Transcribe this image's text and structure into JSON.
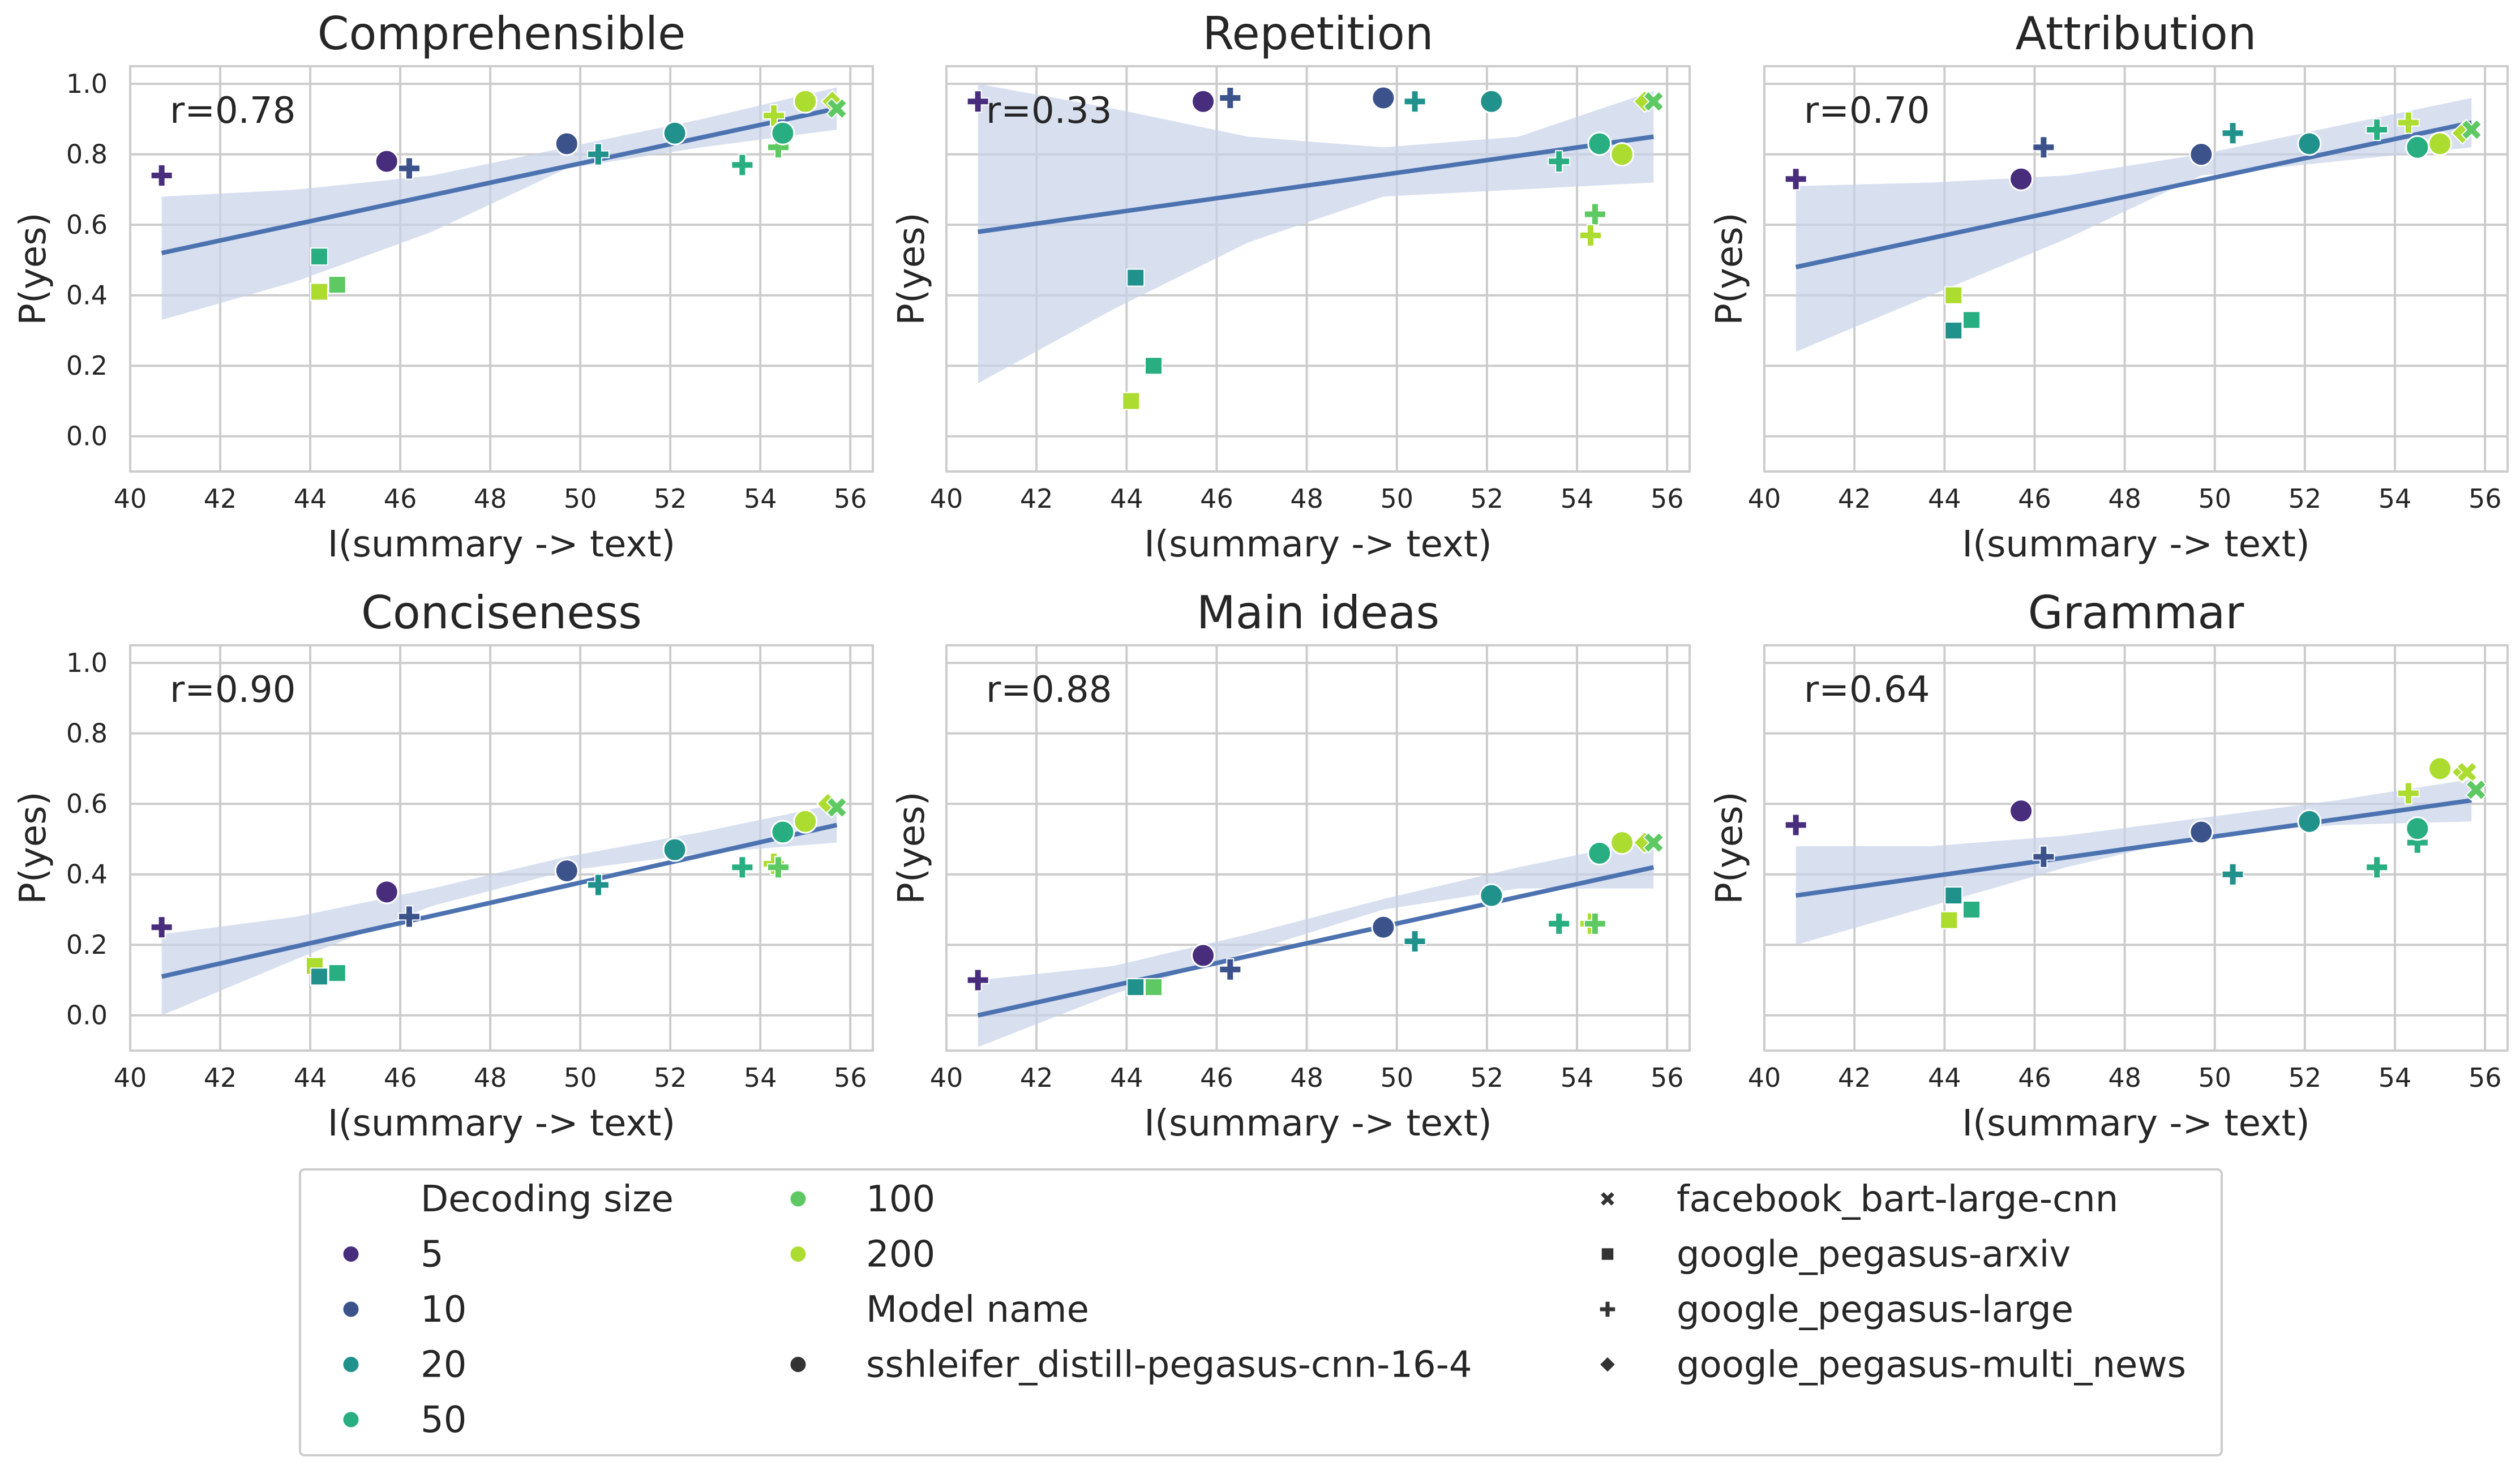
{
  "chart_data": {
    "type": "scatter",
    "xlabel": "I(summary -> text)",
    "ylabel": "P(yes)",
    "xlim": [
      40,
      56.5
    ],
    "ylim": [
      -0.1,
      1.05
    ],
    "xticks": [
      "40",
      "42",
      "44",
      "46",
      "48",
      "50",
      "52",
      "54",
      "56"
    ],
    "yticks": [
      "0.0",
      "0.2",
      "0.4",
      "0.6",
      "0.8",
      "1.0"
    ],
    "colors": {
      "5": "#472d7b",
      "10": "#3b528b",
      "20": "#21918c",
      "50": "#28ae80",
      "100": "#5ec962",
      "200": "#addc30",
      "regression": "#4c72b0",
      "ci_band": "#c8d3ea"
    },
    "models": [
      {
        "name": "sshleifer_distill-pegasus-cnn-16-4",
        "marker": "circle"
      },
      {
        "name": "facebook_bart-large-cnn",
        "marker": "x"
      },
      {
        "name": "google_pegasus-arxiv",
        "marker": "square"
      },
      {
        "name": "google_pegasus-large",
        "marker": "plus"
      },
      {
        "name": "google_pegasus-multi_news",
        "marker": "diamond"
      }
    ],
    "legend": {
      "decoding_title": "Decoding size",
      "decoding_sizes": [
        "5",
        "10",
        "20",
        "50",
        "100",
        "200"
      ],
      "model_title": "Model name",
      "model_order": [
        "sshleifer_distill-pegasus-cnn-16-4",
        "facebook_bart-large-cnn",
        "google_pegasus-arxiv",
        "google_pegasus-large",
        "google_pegasus-multi_news"
      ]
    },
    "panels": [
      {
        "title": "Comprehensible",
        "r_label": "r=0.78",
        "fit": {
          "x0": 40.7,
          "y0": 0.52,
          "x1": 55.7,
          "y1": 0.93
        },
        "ci": {
          "upper": [
            0.68,
            0.7,
            0.74,
            0.82,
            0.9,
            0.99
          ],
          "lower": [
            0.33,
            0.44,
            0.58,
            0.76,
            0.82,
            0.87
          ]
        },
        "points": [
          {
            "model": "google_pegasus-large",
            "size": "5",
            "x": 40.7,
            "y": 0.74
          },
          {
            "model": "sshleifer_distill-pegasus-cnn-16-4",
            "size": "5",
            "x": 45.7,
            "y": 0.78
          },
          {
            "model": "google_pegasus-large",
            "size": "10",
            "x": 46.2,
            "y": 0.76
          },
          {
            "model": "sshleifer_distill-pegasus-cnn-16-4",
            "size": "10",
            "x": 49.7,
            "y": 0.83
          },
          {
            "model": "google_pegasus-large",
            "size": "20",
            "x": 50.4,
            "y": 0.8
          },
          {
            "model": "sshleifer_distill-pegasus-cnn-16-4",
            "size": "20",
            "x": 52.1,
            "y": 0.86
          },
          {
            "model": "google_pegasus-large",
            "size": "50",
            "x": 53.6,
            "y": 0.77
          },
          {
            "model": "google_pegasus-large",
            "size": "100",
            "x": 54.4,
            "y": 0.82
          },
          {
            "model": "google_pegasus-large",
            "size": "200",
            "x": 54.3,
            "y": 0.91
          },
          {
            "model": "sshleifer_distill-pegasus-cnn-16-4",
            "size": "50",
            "x": 54.5,
            "y": 0.86
          },
          {
            "model": "sshleifer_distill-pegasus-cnn-16-4",
            "size": "200",
            "x": 55.0,
            "y": 0.95
          },
          {
            "model": "google_pegasus-multi_news",
            "size": "200",
            "x": 55.6,
            "y": 0.95
          },
          {
            "model": "facebook_bart-large-cnn",
            "size": "100",
            "x": 55.7,
            "y": 0.93
          },
          {
            "model": "google_pegasus-arxiv",
            "size": "50",
            "x": 44.2,
            "y": 0.51
          },
          {
            "model": "google_pegasus-arxiv",
            "size": "200",
            "x": 44.2,
            "y": 0.41
          },
          {
            "model": "google_pegasus-arxiv",
            "size": "100",
            "x": 44.6,
            "y": 0.43
          }
        ]
      },
      {
        "title": "Repetition",
        "r_label": "r=0.33",
        "fit": {
          "x0": 40.7,
          "y0": 0.58,
          "x1": 55.7,
          "y1": 0.85
        },
        "ci": {
          "upper": [
            1.0,
            0.93,
            0.85,
            0.82,
            0.85,
            0.98
          ],
          "lower": [
            0.15,
            0.36,
            0.55,
            0.68,
            0.7,
            0.72
          ]
        },
        "points": [
          {
            "model": "google_pegasus-large",
            "size": "5",
            "x": 40.7,
            "y": 0.95
          },
          {
            "model": "sshleifer_distill-pegasus-cnn-16-4",
            "size": "5",
            "x": 45.7,
            "y": 0.95
          },
          {
            "model": "google_pegasus-large",
            "size": "10",
            "x": 46.3,
            "y": 0.96
          },
          {
            "model": "sshleifer_distill-pegasus-cnn-16-4",
            "size": "10",
            "x": 49.7,
            "y": 0.96
          },
          {
            "model": "google_pegasus-large",
            "size": "20",
            "x": 50.4,
            "y": 0.95
          },
          {
            "model": "sshleifer_distill-pegasus-cnn-16-4",
            "size": "20",
            "x": 52.1,
            "y": 0.95
          },
          {
            "model": "google_pegasus-large",
            "size": "50",
            "x": 53.6,
            "y": 0.78
          },
          {
            "model": "sshleifer_distill-pegasus-cnn-16-4",
            "size": "50",
            "x": 54.5,
            "y": 0.83
          },
          {
            "model": "sshleifer_distill-pegasus-cnn-16-4",
            "size": "200",
            "x": 55.0,
            "y": 0.8
          },
          {
            "model": "google_pegasus-large",
            "size": "100",
            "x": 54.4,
            "y": 0.63
          },
          {
            "model": "google_pegasus-large",
            "size": "200",
            "x": 54.3,
            "y": 0.57
          },
          {
            "model": "google_pegasus-multi_news",
            "size": "200",
            "x": 55.5,
            "y": 0.95
          },
          {
            "model": "facebook_bart-large-cnn",
            "size": "100",
            "x": 55.7,
            "y": 0.95
          },
          {
            "model": "google_pegasus-arxiv",
            "size": "20",
            "x": 44.2,
            "y": 0.45
          },
          {
            "model": "google_pegasus-arxiv",
            "size": "50",
            "x": 44.6,
            "y": 0.2
          },
          {
            "model": "google_pegasus-arxiv",
            "size": "200",
            "x": 44.1,
            "y": 0.1
          }
        ]
      },
      {
        "title": "Attribution",
        "r_label": "r=0.70",
        "fit": {
          "x0": 40.7,
          "y0": 0.48,
          "x1": 55.7,
          "y1": 0.89
        },
        "ci": {
          "upper": [
            0.71,
            0.72,
            0.74,
            0.8,
            0.88,
            0.96
          ],
          "lower": [
            0.24,
            0.4,
            0.56,
            0.74,
            0.78,
            0.82
          ]
        },
        "points": [
          {
            "model": "google_pegasus-large",
            "size": "5",
            "x": 40.7,
            "y": 0.73
          },
          {
            "model": "sshleifer_distill-pegasus-cnn-16-4",
            "size": "5",
            "x": 45.7,
            "y": 0.73
          },
          {
            "model": "google_pegasus-large",
            "size": "10",
            "x": 46.2,
            "y": 0.82
          },
          {
            "model": "sshleifer_distill-pegasus-cnn-16-4",
            "size": "10",
            "x": 49.7,
            "y": 0.8
          },
          {
            "model": "google_pegasus-large",
            "size": "20",
            "x": 50.4,
            "y": 0.86
          },
          {
            "model": "sshleifer_distill-pegasus-cnn-16-4",
            "size": "20",
            "x": 52.1,
            "y": 0.83
          },
          {
            "model": "google_pegasus-large",
            "size": "50",
            "x": 53.6,
            "y": 0.87
          },
          {
            "model": "google_pegasus-large",
            "size": "200",
            "x": 54.3,
            "y": 0.89
          },
          {
            "model": "sshleifer_distill-pegasus-cnn-16-4",
            "size": "50",
            "x": 54.5,
            "y": 0.82
          },
          {
            "model": "sshleifer_distill-pegasus-cnn-16-4",
            "size": "200",
            "x": 55.0,
            "y": 0.83
          },
          {
            "model": "google_pegasus-multi_news",
            "size": "200",
            "x": 55.5,
            "y": 0.86
          },
          {
            "model": "facebook_bart-large-cnn",
            "size": "100",
            "x": 55.7,
            "y": 0.87
          },
          {
            "model": "google_pegasus-arxiv",
            "size": "200",
            "x": 44.2,
            "y": 0.4
          },
          {
            "model": "google_pegasus-arxiv",
            "size": "20",
            "x": 44.2,
            "y": 0.3
          },
          {
            "model": "google_pegasus-arxiv",
            "size": "50",
            "x": 44.6,
            "y": 0.33
          }
        ]
      },
      {
        "title": "Conciseness",
        "r_label": "r=0.90",
        "fit": {
          "x0": 40.7,
          "y0": 0.11,
          "x1": 55.7,
          "y1": 0.54
        },
        "ci": {
          "upper": [
            0.23,
            0.28,
            0.36,
            0.45,
            0.52,
            0.6
          ],
          "lower": [
            0.0,
            0.16,
            0.31,
            0.41,
            0.46,
            0.49
          ]
        },
        "points": [
          {
            "model": "google_pegasus-large",
            "size": "5",
            "x": 40.7,
            "y": 0.25
          },
          {
            "model": "sshleifer_distill-pegasus-cnn-16-4",
            "size": "5",
            "x": 45.7,
            "y": 0.35
          },
          {
            "model": "google_pegasus-large",
            "size": "10",
            "x": 46.2,
            "y": 0.28
          },
          {
            "model": "sshleifer_distill-pegasus-cnn-16-4",
            "size": "10",
            "x": 49.7,
            "y": 0.41
          },
          {
            "model": "google_pegasus-large",
            "size": "20",
            "x": 50.4,
            "y": 0.37
          },
          {
            "model": "sshleifer_distill-pegasus-cnn-16-4",
            "size": "20",
            "x": 52.1,
            "y": 0.47
          },
          {
            "model": "google_pegasus-large",
            "size": "50",
            "x": 53.6,
            "y": 0.42
          },
          {
            "model": "google_pegasus-large",
            "size": "200",
            "x": 54.3,
            "y": 0.43
          },
          {
            "model": "google_pegasus-large",
            "size": "100",
            "x": 54.4,
            "y": 0.42
          },
          {
            "model": "sshleifer_distill-pegasus-cnn-16-4",
            "size": "50",
            "x": 54.5,
            "y": 0.52
          },
          {
            "model": "sshleifer_distill-pegasus-cnn-16-4",
            "size": "200",
            "x": 55.0,
            "y": 0.55
          },
          {
            "model": "google_pegasus-multi_news",
            "size": "200",
            "x": 55.5,
            "y": 0.6
          },
          {
            "model": "facebook_bart-large-cnn",
            "size": "100",
            "x": 55.7,
            "y": 0.59
          },
          {
            "model": "google_pegasus-arxiv",
            "size": "200",
            "x": 44.1,
            "y": 0.14
          },
          {
            "model": "google_pegasus-arxiv",
            "size": "20",
            "x": 44.2,
            "y": 0.11
          },
          {
            "model": "google_pegasus-arxiv",
            "size": "50",
            "x": 44.6,
            "y": 0.12
          }
        ]
      },
      {
        "title": "Main ideas",
        "r_label": "r=0.88",
        "fit": {
          "x0": 40.7,
          "y0": 0.0,
          "x1": 55.7,
          "y1": 0.42
        },
        "ci": {
          "upper": [
            0.1,
            0.14,
            0.23,
            0.33,
            0.42,
            0.5
          ],
          "lower": [
            -0.09,
            0.06,
            0.18,
            0.3,
            0.36,
            0.36
          ]
        },
        "points": [
          {
            "model": "google_pegasus-large",
            "size": "5",
            "x": 40.7,
            "y": 0.1
          },
          {
            "model": "sshleifer_distill-pegasus-cnn-16-4",
            "size": "5",
            "x": 45.7,
            "y": 0.17
          },
          {
            "model": "google_pegasus-large",
            "size": "10",
            "x": 46.3,
            "y": 0.13
          },
          {
            "model": "sshleifer_distill-pegasus-cnn-16-4",
            "size": "10",
            "x": 49.7,
            "y": 0.25
          },
          {
            "model": "google_pegasus-large",
            "size": "20",
            "x": 50.4,
            "y": 0.21
          },
          {
            "model": "sshleifer_distill-pegasus-cnn-16-4",
            "size": "20",
            "x": 52.1,
            "y": 0.34
          },
          {
            "model": "google_pegasus-large",
            "size": "50",
            "x": 53.6,
            "y": 0.26
          },
          {
            "model": "google_pegasus-large",
            "size": "200",
            "x": 54.3,
            "y": 0.26
          },
          {
            "model": "google_pegasus-large",
            "size": "100",
            "x": 54.4,
            "y": 0.26
          },
          {
            "model": "sshleifer_distill-pegasus-cnn-16-4",
            "size": "50",
            "x": 54.5,
            "y": 0.46
          },
          {
            "model": "sshleifer_distill-pegasus-cnn-16-4",
            "size": "200",
            "x": 55.0,
            "y": 0.49
          },
          {
            "model": "google_pegasus-multi_news",
            "size": "200",
            "x": 55.5,
            "y": 0.49
          },
          {
            "model": "facebook_bart-large-cnn",
            "size": "100",
            "x": 55.7,
            "y": 0.49
          },
          {
            "model": "google_pegasus-arxiv",
            "size": "20",
            "x": 44.2,
            "y": 0.08
          },
          {
            "model": "google_pegasus-arxiv",
            "size": "100",
            "x": 44.6,
            "y": 0.08
          }
        ]
      },
      {
        "title": "Grammar",
        "r_label": "r=0.64",
        "fit": {
          "x0": 40.7,
          "y0": 0.34,
          "x1": 55.7,
          "y1": 0.61
        },
        "ci": {
          "upper": [
            0.48,
            0.48,
            0.51,
            0.56,
            0.61,
            0.67
          ],
          "lower": [
            0.2,
            0.31,
            0.42,
            0.51,
            0.54,
            0.55
          ]
        },
        "points": [
          {
            "model": "google_pegasus-large",
            "size": "5",
            "x": 40.7,
            "y": 0.54
          },
          {
            "model": "sshleifer_distill-pegasus-cnn-16-4",
            "size": "5",
            "x": 45.7,
            "y": 0.58
          },
          {
            "model": "google_pegasus-large",
            "size": "10",
            "x": 46.2,
            "y": 0.45
          },
          {
            "model": "sshleifer_distill-pegasus-cnn-16-4",
            "size": "10",
            "x": 49.7,
            "y": 0.52
          },
          {
            "model": "google_pegasus-large",
            "size": "20",
            "x": 50.4,
            "y": 0.4
          },
          {
            "model": "sshleifer_distill-pegasus-cnn-16-4",
            "size": "20",
            "x": 52.1,
            "y": 0.55
          },
          {
            "model": "google_pegasus-large",
            "size": "50",
            "x": 53.6,
            "y": 0.42
          },
          {
            "model": "google_pegasus-large",
            "size": "200",
            "x": 54.3,
            "y": 0.63
          },
          {
            "model": "google_pegasus-large",
            "size": "50",
            "x": 54.5,
            "y": 0.49
          },
          {
            "model": "sshleifer_distill-pegasus-cnn-16-4",
            "size": "50",
            "x": 54.5,
            "y": 0.53
          },
          {
            "model": "sshleifer_distill-pegasus-cnn-16-4",
            "size": "200",
            "x": 55.0,
            "y": 0.7
          },
          {
            "model": "google_pegasus-multi_news",
            "size": "200",
            "x": 55.5,
            "y": 0.69
          },
          {
            "model": "facebook_bart-large-cnn",
            "size": "200",
            "x": 55.6,
            "y": 0.69
          },
          {
            "model": "facebook_bart-large-cnn",
            "size": "100",
            "x": 55.8,
            "y": 0.64
          },
          {
            "model": "google_pegasus-arxiv",
            "size": "20",
            "x": 44.2,
            "y": 0.34
          },
          {
            "model": "google_pegasus-arxiv",
            "size": "200",
            "x": 44.1,
            "y": 0.27
          },
          {
            "model": "google_pegasus-arxiv",
            "size": "50",
            "x": 44.6,
            "y": 0.3
          }
        ]
      }
    ]
  }
}
